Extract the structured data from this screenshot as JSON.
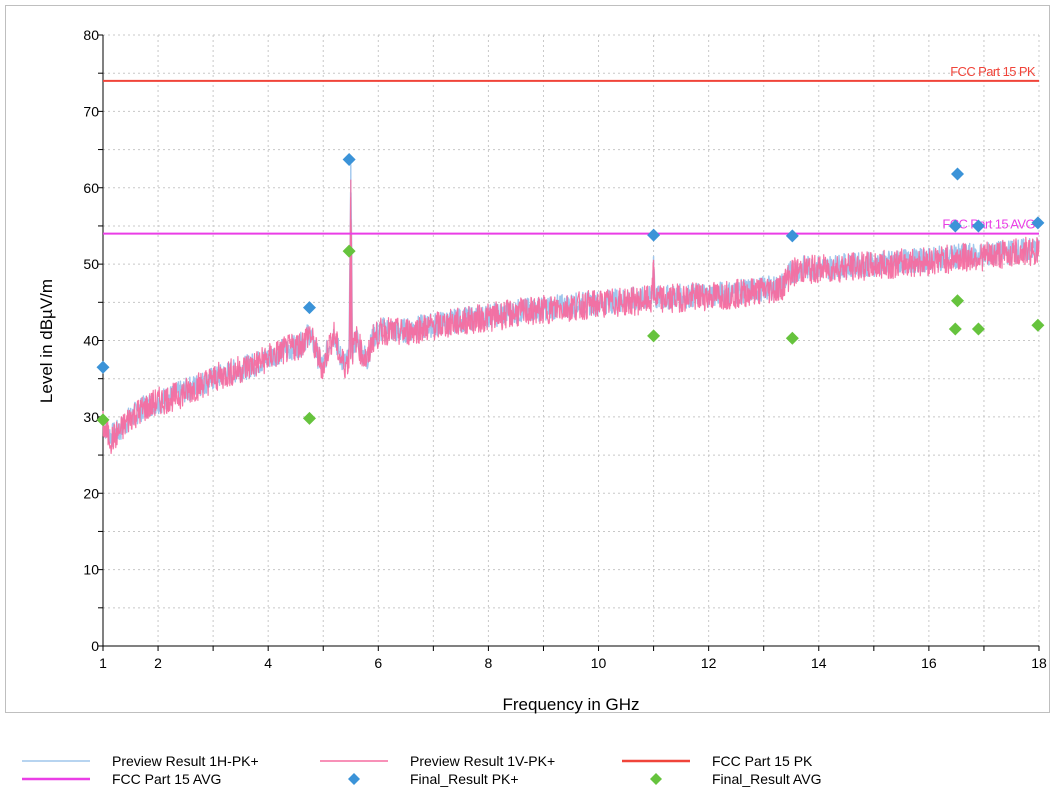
{
  "chart_data": {
    "type": "line",
    "xlabel": "Frequency in GHz",
    "ylabel": "Level in dBµV/m",
    "xlim": [
      1,
      18
    ],
    "ylim": [
      0,
      80
    ],
    "x_ticks": [
      1,
      2,
      4,
      6,
      8,
      10,
      12,
      14,
      16,
      18
    ],
    "y_ticks": [
      0,
      10,
      20,
      30,
      40,
      50,
      60,
      70,
      80
    ],
    "grid": true,
    "legend_position": "bottom",
    "limit_lines": [
      {
        "name": "FCC Part 15 PK",
        "value": 74,
        "color": "#f0443a",
        "label": "FCC Part 15 PK"
      },
      {
        "name": "FCC Part 15 AVG",
        "value": 54,
        "color": "#ea3ee6",
        "label": "FCC Part 15 AVG"
      }
    ],
    "series": [
      {
        "name": "Preview Result 1H-PK+",
        "color": "#9fc6ec",
        "x": [
          1,
          1.05,
          1.15,
          1.3,
          1.5,
          1.8,
          2,
          2.3,
          2.6,
          3,
          3.4,
          3.8,
          4.2,
          4.6,
          4.75,
          4.9,
          5.0,
          5.1,
          5.2,
          5.3,
          5.4,
          5.47,
          5.5,
          5.53,
          5.6,
          5.7,
          5.8,
          5.9,
          6.1,
          6.4,
          6.8,
          7.2,
          7.6,
          8,
          8.5,
          9,
          9.5,
          10,
          10.5,
          10.97,
          11.0,
          11.03,
          11.5,
          12,
          12.5,
          13,
          13.3,
          13.5,
          13.7,
          14,
          14.5,
          15,
          15.5,
          16,
          16.5,
          17,
          17.5,
          18
        ],
        "y": [
          29.5,
          28.5,
          27.5,
          28.2,
          30,
          31.5,
          32,
          32.8,
          33.8,
          35,
          36,
          37,
          38.5,
          39.5,
          41,
          38,
          36.5,
          39.5,
          41,
          38,
          37,
          37.8,
          63,
          38.5,
          40.5,
          38.5,
          37.5,
          40.5,
          41.5,
          41.2,
          41.8,
          42.3,
          42.8,
          43.2,
          43.8,
          44.2,
          44.6,
          45,
          45.3,
          45.5,
          51,
          45.5,
          45.8,
          46,
          46.3,
          46.8,
          47,
          49,
          49.5,
          49.5,
          49.8,
          50,
          50.3,
          50.6,
          51,
          51.2,
          51.6,
          52
        ]
      },
      {
        "name": "Preview Result 1V-PK+",
        "color": "#f56da0",
        "x": [
          1,
          1.05,
          1.15,
          1.3,
          1.5,
          1.8,
          2,
          2.3,
          2.6,
          3,
          3.4,
          3.8,
          4.2,
          4.6,
          4.75,
          4.9,
          5.0,
          5.1,
          5.2,
          5.3,
          5.4,
          5.47,
          5.5,
          5.53,
          5.6,
          5.7,
          5.8,
          5.9,
          6.1,
          6.4,
          6.8,
          7.2,
          7.6,
          8,
          8.5,
          9,
          9.5,
          10,
          10.5,
          10.97,
          11.0,
          11.03,
          11.5,
          12,
          12.5,
          13,
          13.3,
          13.5,
          13.7,
          14,
          14.5,
          15,
          15.5,
          16,
          16.5,
          17,
          17.5,
          18
        ],
        "y": [
          29,
          28,
          27,
          28,
          30,
          31.3,
          32,
          32.6,
          33.6,
          35,
          36,
          37,
          38.4,
          39.5,
          41,
          38,
          36.3,
          39.3,
          40.8,
          37.8,
          36.8,
          37.6,
          61,
          38.4,
          40.3,
          38.3,
          37.3,
          40.3,
          41.3,
          41,
          41.6,
          42.1,
          42.6,
          43,
          43.6,
          44,
          44.4,
          44.8,
          45.1,
          45.3,
          50.5,
          45.3,
          45.6,
          45.8,
          46.1,
          46.6,
          46.8,
          48.8,
          49.3,
          49.3,
          49.6,
          49.8,
          50.1,
          50.4,
          50.8,
          51,
          51.4,
          51.8
        ]
      }
    ],
    "markers": [
      {
        "name": "Final_Result PK+",
        "color": "#3b93d8",
        "x": [
          1.0,
          4.75,
          5.47,
          11.0,
          13.52,
          16.48,
          16.52,
          16.9,
          17.98
        ],
        "y": [
          36.5,
          44.3,
          63.7,
          53.8,
          53.7,
          55.0,
          61.8,
          55.0,
          55.4
        ]
      },
      {
        "name": "Final_Result AVG",
        "color": "#66c33d",
        "x": [
          1.0,
          4.75,
          5.47,
          11.0,
          13.52,
          16.48,
          16.52,
          16.9,
          17.98
        ],
        "y": [
          29.6,
          29.8,
          51.7,
          40.6,
          40.3,
          41.5,
          45.2,
          41.5,
          42.0
        ]
      }
    ]
  },
  "legend": {
    "items": [
      {
        "label": "Preview Result 1H-PK+",
        "kind": "line",
        "color": "#9fc6ec"
      },
      {
        "label": "Preview Result 1V-PK+",
        "kind": "line",
        "color": "#f56da0"
      },
      {
        "label": "FCC Part 15 PK",
        "kind": "line",
        "color": "#f0443a"
      },
      {
        "label": "FCC Part 15 AVG",
        "kind": "line",
        "color": "#ea3ee6"
      },
      {
        "label": "Final_Result PK+",
        "kind": "diamond",
        "color": "#3b93d8"
      },
      {
        "label": "Final_Result AVG",
        "kind": "diamond",
        "color": "#66c33d"
      }
    ]
  }
}
